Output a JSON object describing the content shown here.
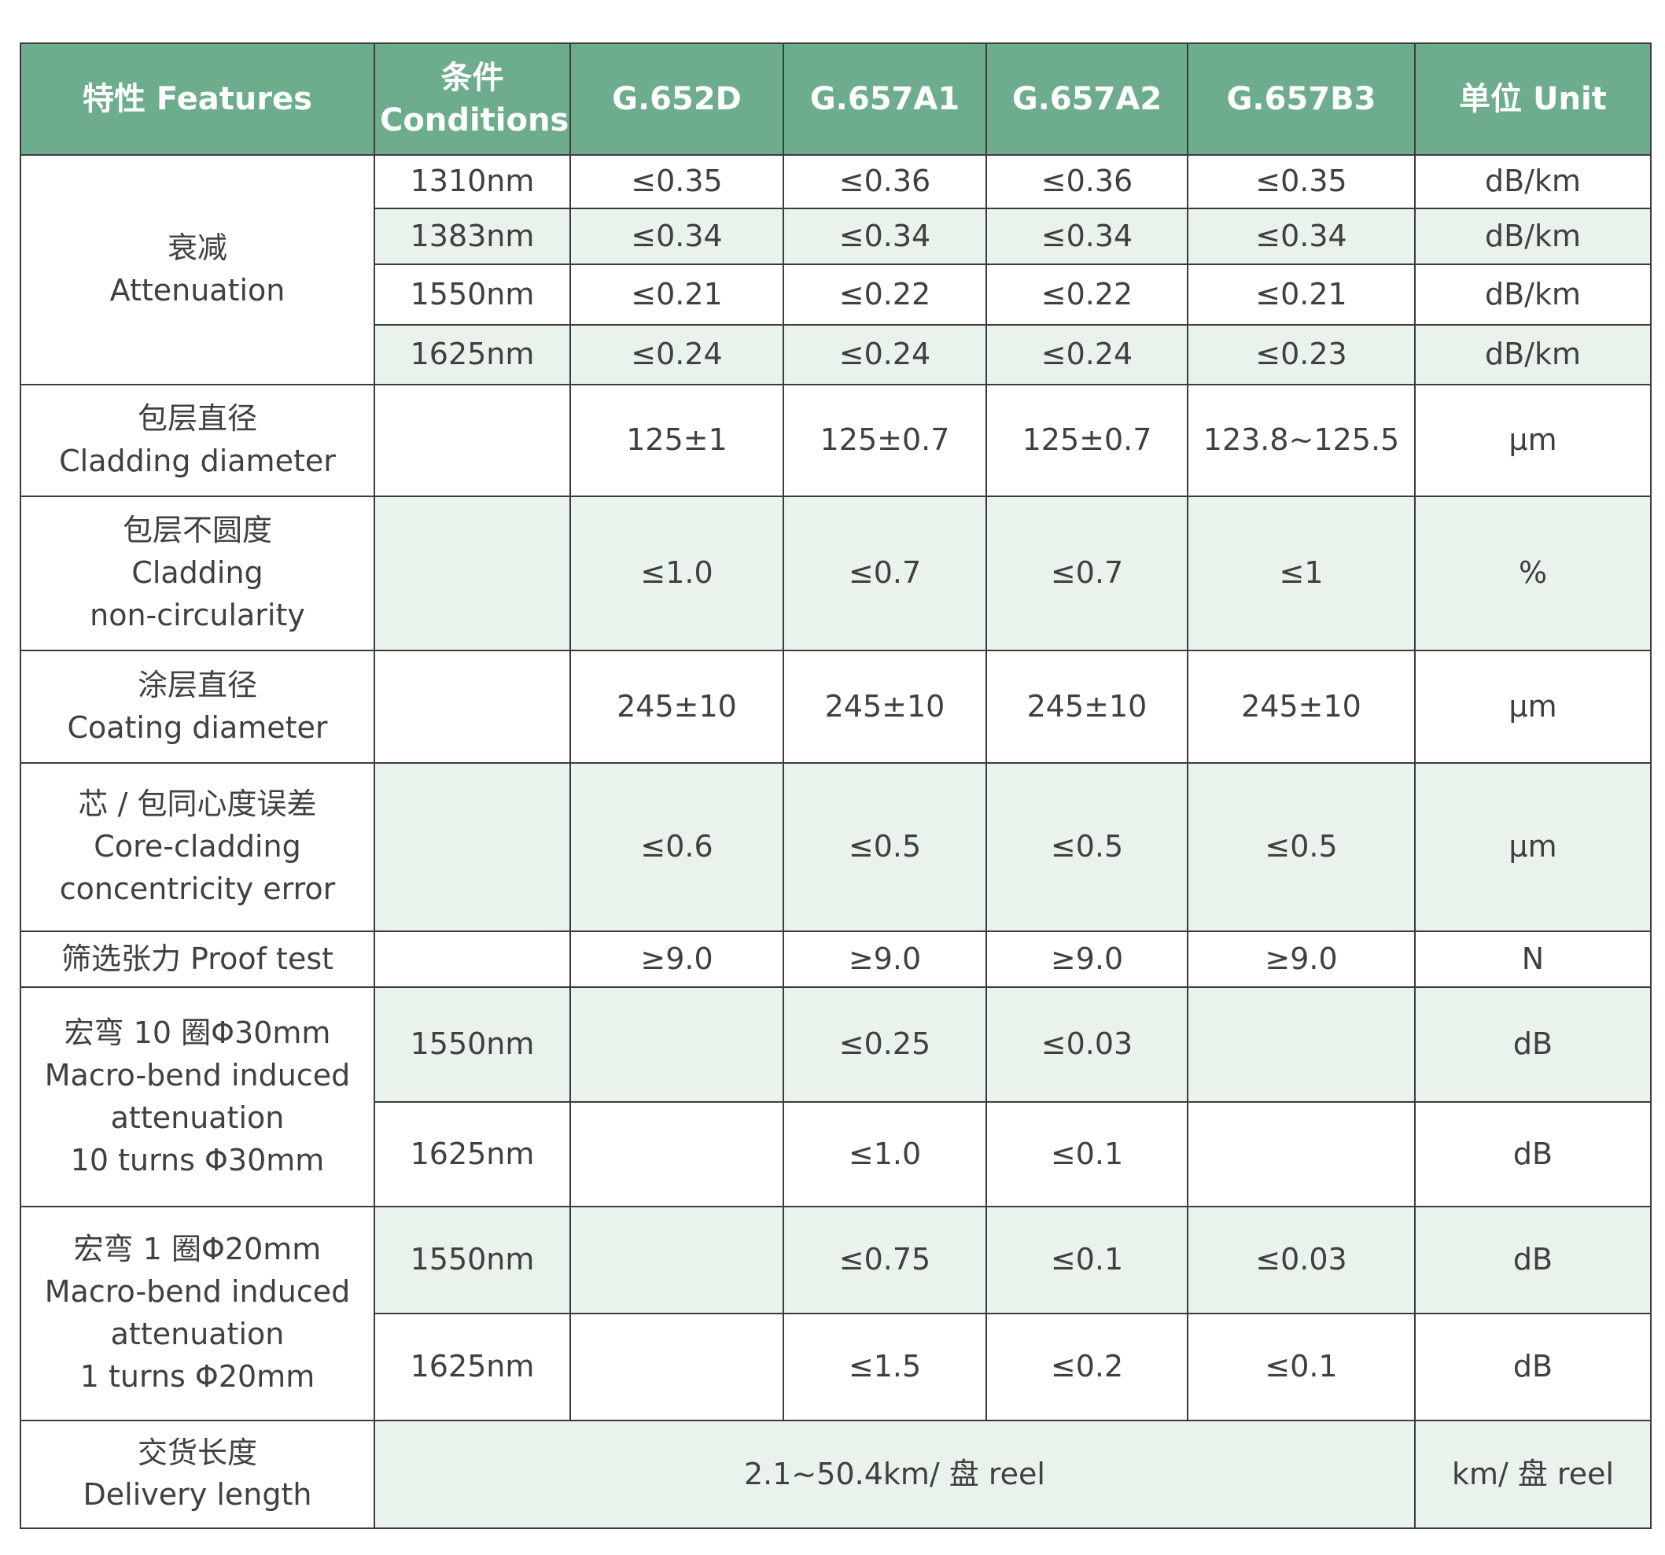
{
  "header": {
    "features": "特性 Features",
    "conditions_cn": "条件",
    "conditions_en": "Conditions",
    "col1": "G.652D",
    "col2": "G.657A1",
    "col3": "G.657A2",
    "col4": "G.657B3",
    "unit": "单位 Unit"
  },
  "attenuation": {
    "label_cn": "衰减",
    "label_en": "Attenuation",
    "rows": [
      {
        "cond": "1310nm",
        "v": [
          "≤0.35",
          "≤0.36",
          "≤0.36",
          "≤0.35"
        ],
        "unit": "dB/km"
      },
      {
        "cond": "1383nm",
        "v": [
          "≤0.34",
          "≤0.34",
          "≤0.34",
          "≤0.34"
        ],
        "unit": "dB/km"
      },
      {
        "cond": "1550nm",
        "v": [
          "≤0.21",
          "≤0.22",
          "≤0.22",
          "≤0.21"
        ],
        "unit": "dB/km"
      },
      {
        "cond": "1625nm",
        "v": [
          "≤0.24",
          "≤0.24",
          "≤0.24",
          "≤0.23"
        ],
        "unit": "dB/km"
      }
    ]
  },
  "cladding_diameter": {
    "label_cn": "包层直径",
    "label_en": "Cladding diameter",
    "cond": "",
    "v": [
      "125±1",
      "125±0.7",
      "125±0.7",
      "123.8~125.5"
    ],
    "unit": "μm"
  },
  "cladding_noncircularity": {
    "label_cn": "包层不圆度",
    "label_en1": "Cladding",
    "label_en2": "non-circularity",
    "cond": "",
    "v": [
      "≤1.0",
      "≤0.7",
      "≤0.7",
      "≤1"
    ],
    "unit": "%"
  },
  "coating_diameter": {
    "label_cn": "涂层直径",
    "label_en": "Coating diameter",
    "cond": "",
    "v": [
      "245±10",
      "245±10",
      "245±10",
      "245±10"
    ],
    "unit": "μm"
  },
  "concentricity": {
    "label_cn": "芯 / 包同心度误差",
    "label_en1": "Core-cladding",
    "label_en2": "concentricity error",
    "cond": "",
    "v": [
      "≤0.6",
      "≤0.5",
      "≤0.5",
      "≤0.5"
    ],
    "unit": "μm"
  },
  "proof_test": {
    "label": "筛选张力 Proof test",
    "cond": "",
    "v": [
      "≥9.0",
      "≥9.0",
      "≥9.0",
      "≥9.0"
    ],
    "unit": "N"
  },
  "macrobend_10": {
    "label_cn": "宏弯 10 圈Φ30mm",
    "label_en1": "Macro-bend induced",
    "label_en2": "attenuation",
    "label_en3": "10 turns Φ30mm",
    "rows": [
      {
        "cond": "1550nm",
        "v": [
          "",
          "≤0.25",
          "≤0.03",
          ""
        ],
        "unit": "dB"
      },
      {
        "cond": "1625nm",
        "v": [
          "",
          "≤1.0",
          "≤0.1",
          ""
        ],
        "unit": "dB"
      }
    ]
  },
  "macrobend_1": {
    "label_cn": "宏弯 1 圈Φ20mm",
    "label_en1": "Macro-bend induced",
    "label_en2": "attenuation",
    "label_en3": "1 turns Φ20mm",
    "rows": [
      {
        "cond": "1550nm",
        "v": [
          "",
          "≤0.75",
          "≤0.1",
          "≤0.03"
        ],
        "unit": "dB"
      },
      {
        "cond": "1625nm",
        "v": [
          "",
          "≤1.5",
          "≤0.2",
          "≤0.1"
        ],
        "unit": "dB"
      }
    ]
  },
  "delivery_length": {
    "label_cn": "交货长度",
    "label_en": "Delivery length",
    "value": "2.1~50.4km/ 盘 reel",
    "unit": "km/ 盘 reel"
  }
}
